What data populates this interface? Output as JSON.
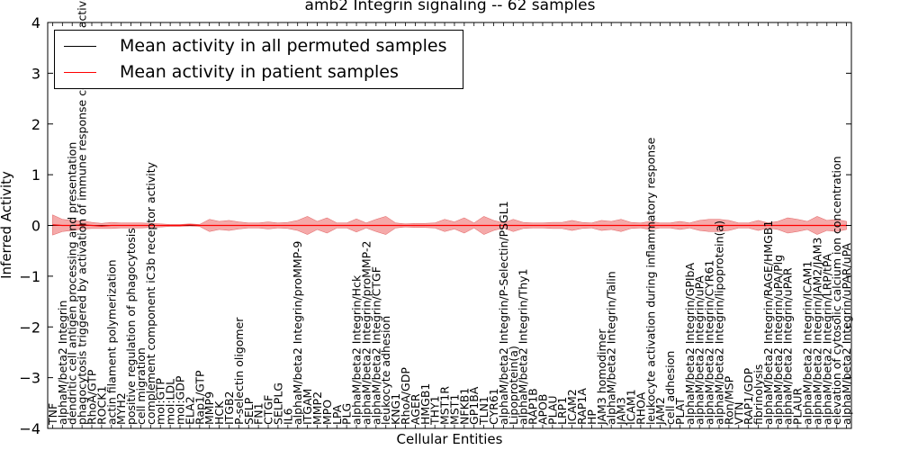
{
  "chart_data": {
    "type": "line",
    "title": "amb2 Integrin signaling -- 62 samples",
    "xlabel": "Cellular Entities",
    "ylabel": "Inferred Activity",
    "ylim": [
      -4,
      4
    ],
    "yticks": [
      -4,
      -3,
      -2,
      -1,
      0,
      1,
      2,
      3,
      4
    ],
    "grid": false,
    "legend_position": "top-left",
    "colors": {
      "permuted": "#000000",
      "patient": "#ff0000",
      "band": "#f28c8c"
    },
    "categories": [
      "TNF",
      "alphaM/beta2 Integrin",
      "dendritic cell antigen processing and presentation",
      "phagocytosis triggered by activation of immune response cell surface activating receptor",
      "RhoA/GTP",
      "ROCK1",
      "actin filament polymerization",
      "MYH2",
      "positive regulation of phagocytosis",
      "cell migration",
      "complement component iC3b receptor activity",
      "mol:GTP",
      "mol:LDL",
      "mol:GDP",
      "ELA2",
      "Rap1/GTP",
      "MMP9",
      "HCK",
      "ITGB2",
      "P-selectin oligomer",
      "SELP",
      "FN1",
      "CTGF",
      "SELPLG",
      "IL6",
      "alphaM/beta2 Integrin/proMMP-9",
      "ITGAM",
      "MMP2",
      "MPO",
      "LPA",
      "PLG",
      "alphaM/beta2 Integrin/Hck",
      "alphaM/beta2 Integrin/proMMP-2",
      "alphaM/beta2 Integrin/CTGF",
      "leukocyte adhesion",
      "KNG1",
      "RhoA/GDP",
      "AGER",
      "HMGB1",
      "THY1",
      "MST1R",
      "MST1",
      "NFKB1",
      "GP1BA",
      "TLN1",
      "CYR61",
      "alphaM/beta2 Integrin/P-Selectin/PSGL1",
      "Lipoprotein(a)",
      "alphaM/beta2 Integrin/Thy1",
      "RAP1B",
      "APOB",
      "PLAU",
      "LRP1",
      "ICAM2",
      "RAP1A",
      "HP",
      "JAM3 homodimer",
      "alphaM/beta2 Integrin/Talin",
      "JAM3",
      "ICAM1",
      "RHOA",
      "leukocyte activation during inflammatory response",
      "JAM2",
      "cell adhesion",
      "PLAT",
      "alphaM/beta2 Integrin/GPIbA",
      "alphaM/beta2 Integrin/uPA",
      "alphaM/beta2 Integrin/CYR61",
      "alphaM/beta2 Integrin/lipoprotein(a)",
      "Ron/MSP",
      "VTN",
      "RAP1/GDP",
      "fibrinolysis",
      "alphaM/beta2 Integrin/RAGE/HMGB1",
      "alphaM/beta2 Integrin/uPA/Plg",
      "alphaM/beta2 Integrin/uPAR",
      "PLAUR",
      "alphaM/beta2 Integrin/ICAM1",
      "alphaM/beta2 Integrin/JAM2/JAM3",
      "alphaM/beta2 Integrin/LRP/tPA",
      "elevation of cytosolic calcium ion concentration",
      "alphaM/beta2 Integrin/uPAR/uPA"
    ],
    "series": [
      {
        "name": "Mean activity in all permuted samples",
        "color": "#000000",
        "values": [
          0,
          0,
          0,
          0,
          0,
          0,
          0,
          0,
          0,
          0,
          0,
          0,
          0,
          0,
          0,
          0,
          0,
          0,
          0,
          0,
          0,
          0,
          0,
          0,
          0,
          0,
          0,
          0,
          0,
          0,
          0,
          0,
          0,
          0,
          0,
          0,
          0,
          0,
          0,
          0,
          0,
          0,
          0,
          0,
          0,
          0,
          0,
          0,
          0,
          0,
          0,
          0,
          0,
          0,
          0,
          0,
          0,
          0,
          0,
          0,
          0,
          0,
          0,
          0,
          0,
          0,
          0,
          0,
          0,
          0,
          0,
          0,
          0,
          0,
          0,
          0,
          0,
          0,
          0,
          0,
          0,
          0
        ]
      },
      {
        "name": "Mean activity in patient samples",
        "color": "#ff0000",
        "values": [
          0.01,
          0.0,
          0.0,
          0.01,
          0.0,
          -0.01,
          0.0,
          0.0,
          0.0,
          0.0,
          0.0,
          0.0,
          0.0,
          0.0,
          0.01,
          0.0,
          0.0,
          0.0,
          0.0,
          0.0,
          0.0,
          0.0,
          0.0,
          0.0,
          0.0,
          0.0,
          0.0,
          0.0,
          0.0,
          0.0,
          0.0,
          0.0,
          0.0,
          0.0,
          0.0,
          0.0,
          0.0,
          0.0,
          0.0,
          0.0,
          0.0,
          0.0,
          0.0,
          0.0,
          0.0,
          0.0,
          0.0,
          0.0,
          0.0,
          0.0,
          0.0,
          0.0,
          0.0,
          0.0,
          0.0,
          0.0,
          0.0,
          0.0,
          0.0,
          0.0,
          0.0,
          0.0,
          0.0,
          0.0,
          0.0,
          0.0,
          0.0,
          0.0,
          0.0,
          0.0,
          0.0,
          0.0,
          0.0,
          0.0,
          0.0,
          0.0,
          0.0,
          0.0,
          0.0,
          0.0,
          0.0,
          0.0
        ],
        "spread": [
          0.2,
          0.12,
          0.1,
          0.08,
          0.06,
          0.05,
          0.06,
          0.05,
          0.05,
          0.05,
          0.04,
          0.03,
          0.02,
          0.02,
          0.02,
          0.02,
          0.12,
          0.08,
          0.1,
          0.07,
          0.05,
          0.05,
          0.07,
          0.05,
          0.06,
          0.1,
          0.18,
          0.08,
          0.15,
          0.05,
          0.05,
          0.13,
          0.05,
          0.12,
          0.18,
          0.05,
          0.03,
          0.04,
          0.04,
          0.05,
          0.12,
          0.07,
          0.15,
          0.05,
          0.18,
          0.1,
          0.05,
          0.12,
          0.06,
          0.05,
          0.05,
          0.06,
          0.06,
          0.1,
          0.06,
          0.05,
          0.1,
          0.08,
          0.12,
          0.06,
          0.05,
          0.08,
          0.05,
          0.05,
          0.08,
          0.05,
          0.1,
          0.12,
          0.12,
          0.1,
          0.05,
          0.05,
          0.1,
          0.05,
          0.08,
          0.15,
          0.12,
          0.08,
          0.18,
          0.1,
          0.12,
          0.08
        ]
      }
    ],
    "legend": [
      "Mean activity in all permuted samples",
      "Mean activity in patient samples"
    ]
  }
}
